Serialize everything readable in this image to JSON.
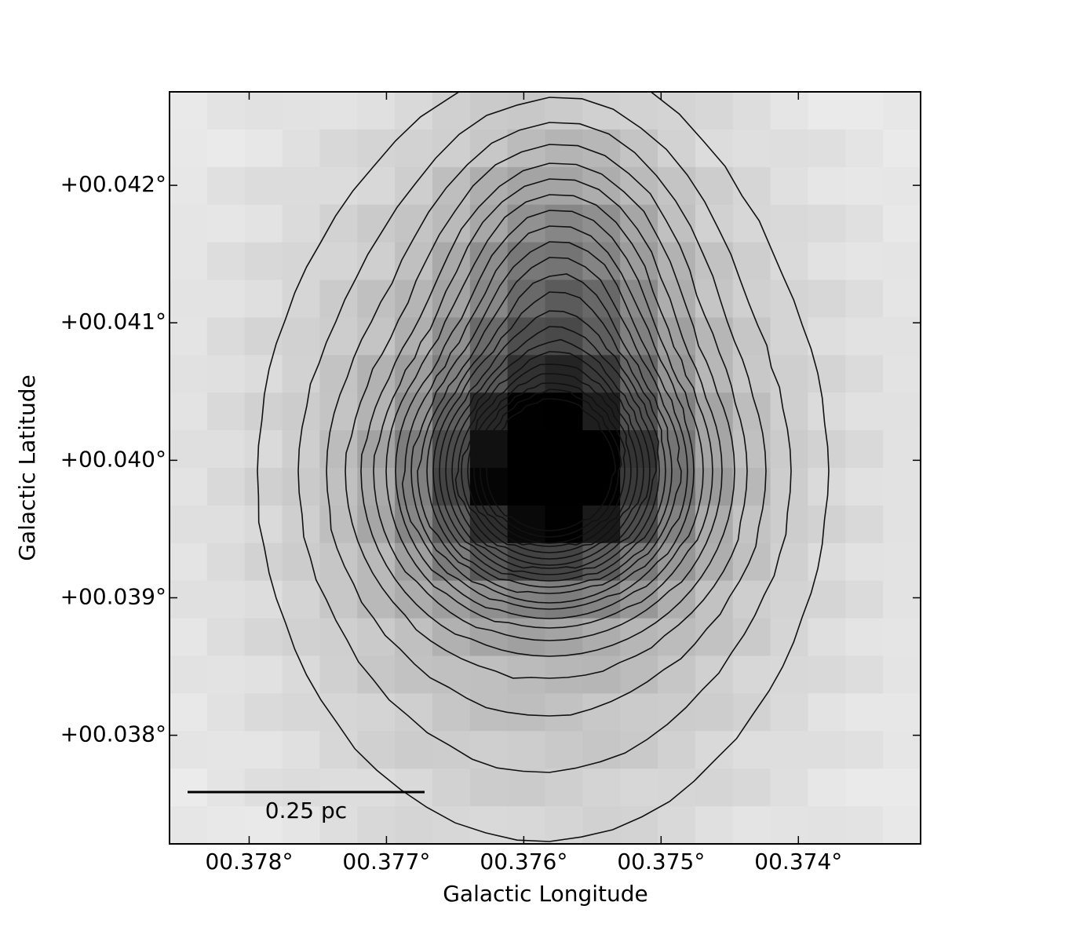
{
  "chart_data": {
    "type": "image",
    "xlabel": "Galactic Longitude",
    "ylabel": "Galactic Latitude",
    "xlim": [
      0.37858,
      0.37311
    ],
    "ylim": [
      0.03721,
      0.04268
    ],
    "xticks": [
      {
        "value": 0.378,
        "label": "00.378°"
      },
      {
        "value": 0.377,
        "label": "00.377°"
      },
      {
        "value": 0.376,
        "label": "00.376°"
      },
      {
        "value": 0.375,
        "label": "00.375°"
      },
      {
        "value": 0.374,
        "label": "00.374°"
      }
    ],
    "yticks": [
      {
        "value": 0.042,
        "label": "+00.042°"
      },
      {
        "value": 0.041,
        "label": "+00.041°"
      },
      {
        "value": 0.04,
        "label": "+00.040°"
      },
      {
        "value": 0.039,
        "label": "+00.039°"
      },
      {
        "value": 0.038,
        "label": "+00.038°"
      }
    ],
    "scale_bar_label": "0.25 pc"
  }
}
